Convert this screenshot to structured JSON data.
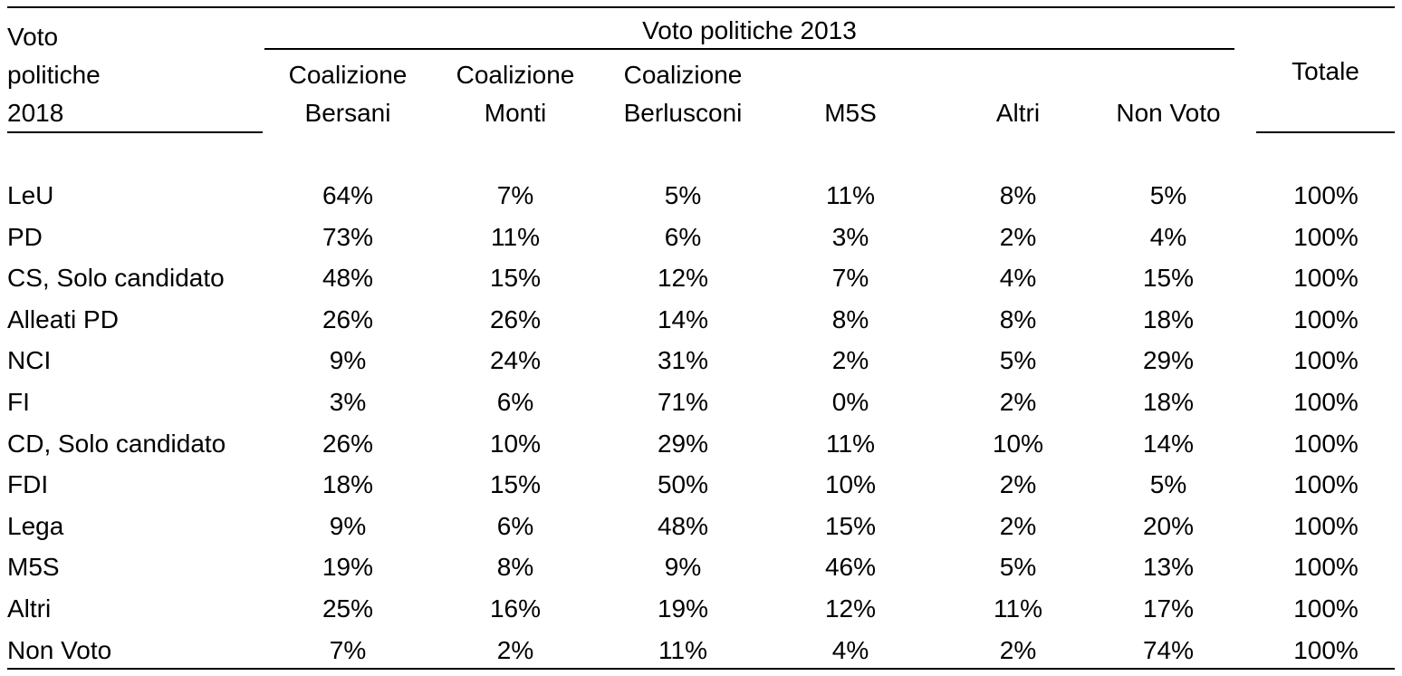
{
  "table": {
    "row_header_title": [
      "Voto",
      "politiche",
      "2018"
    ],
    "group_header": "Voto politiche 2013",
    "columns": [
      [
        "Coalizione",
        "Bersani"
      ],
      [
        "Coalizione",
        "Monti"
      ],
      [
        "Coalizione",
        "Berlusconi"
      ],
      [
        "M5S"
      ],
      [
        "Altri"
      ],
      [
        "Non Voto"
      ]
    ],
    "total_header": "Totale",
    "rows": [
      {
        "label": "LeU",
        "values": [
          "64%",
          "7%",
          "5%",
          "11%",
          "8%",
          "5%"
        ],
        "total": "100%"
      },
      {
        "label": "PD",
        "values": [
          "73%",
          "11%",
          "6%",
          "3%",
          "2%",
          "4%"
        ],
        "total": "100%"
      },
      {
        "label": "CS, Solo candidato",
        "values": [
          "48%",
          "15%",
          "12%",
          "7%",
          "4%",
          "15%"
        ],
        "total": "100%"
      },
      {
        "label": "Alleati PD",
        "values": [
          "26%",
          "26%",
          "14%",
          "8%",
          "8%",
          "18%"
        ],
        "total": "100%"
      },
      {
        "label": "NCI",
        "values": [
          "9%",
          "24%",
          "31%",
          "2%",
          "5%",
          "29%"
        ],
        "total": "100%"
      },
      {
        "label": "FI",
        "values": [
          "3%",
          "6%",
          "71%",
          "0%",
          "2%",
          "18%"
        ],
        "total": "100%"
      },
      {
        "label": "CD, Solo candidato",
        "values": [
          "26%",
          "10%",
          "29%",
          "11%",
          "10%",
          "14%"
        ],
        "total": "100%"
      },
      {
        "label": "FDI",
        "values": [
          "18%",
          "15%",
          "50%",
          "10%",
          "2%",
          "5%"
        ],
        "total": "100%"
      },
      {
        "label": "Lega",
        "values": [
          "9%",
          "6%",
          "48%",
          "15%",
          "2%",
          "20%"
        ],
        "total": "100%"
      },
      {
        "label": "M5S",
        "values": [
          "19%",
          "8%",
          "9%",
          "46%",
          "5%",
          "13%"
        ],
        "total": "100%"
      },
      {
        "label": "Altri",
        "values": [
          "25%",
          "16%",
          "19%",
          "12%",
          "11%",
          "17%"
        ],
        "total": "100%"
      },
      {
        "label": "Non Voto",
        "values": [
          "7%",
          "2%",
          "11%",
          "4%",
          "2%",
          "74%"
        ],
        "total": "100%"
      }
    ]
  }
}
